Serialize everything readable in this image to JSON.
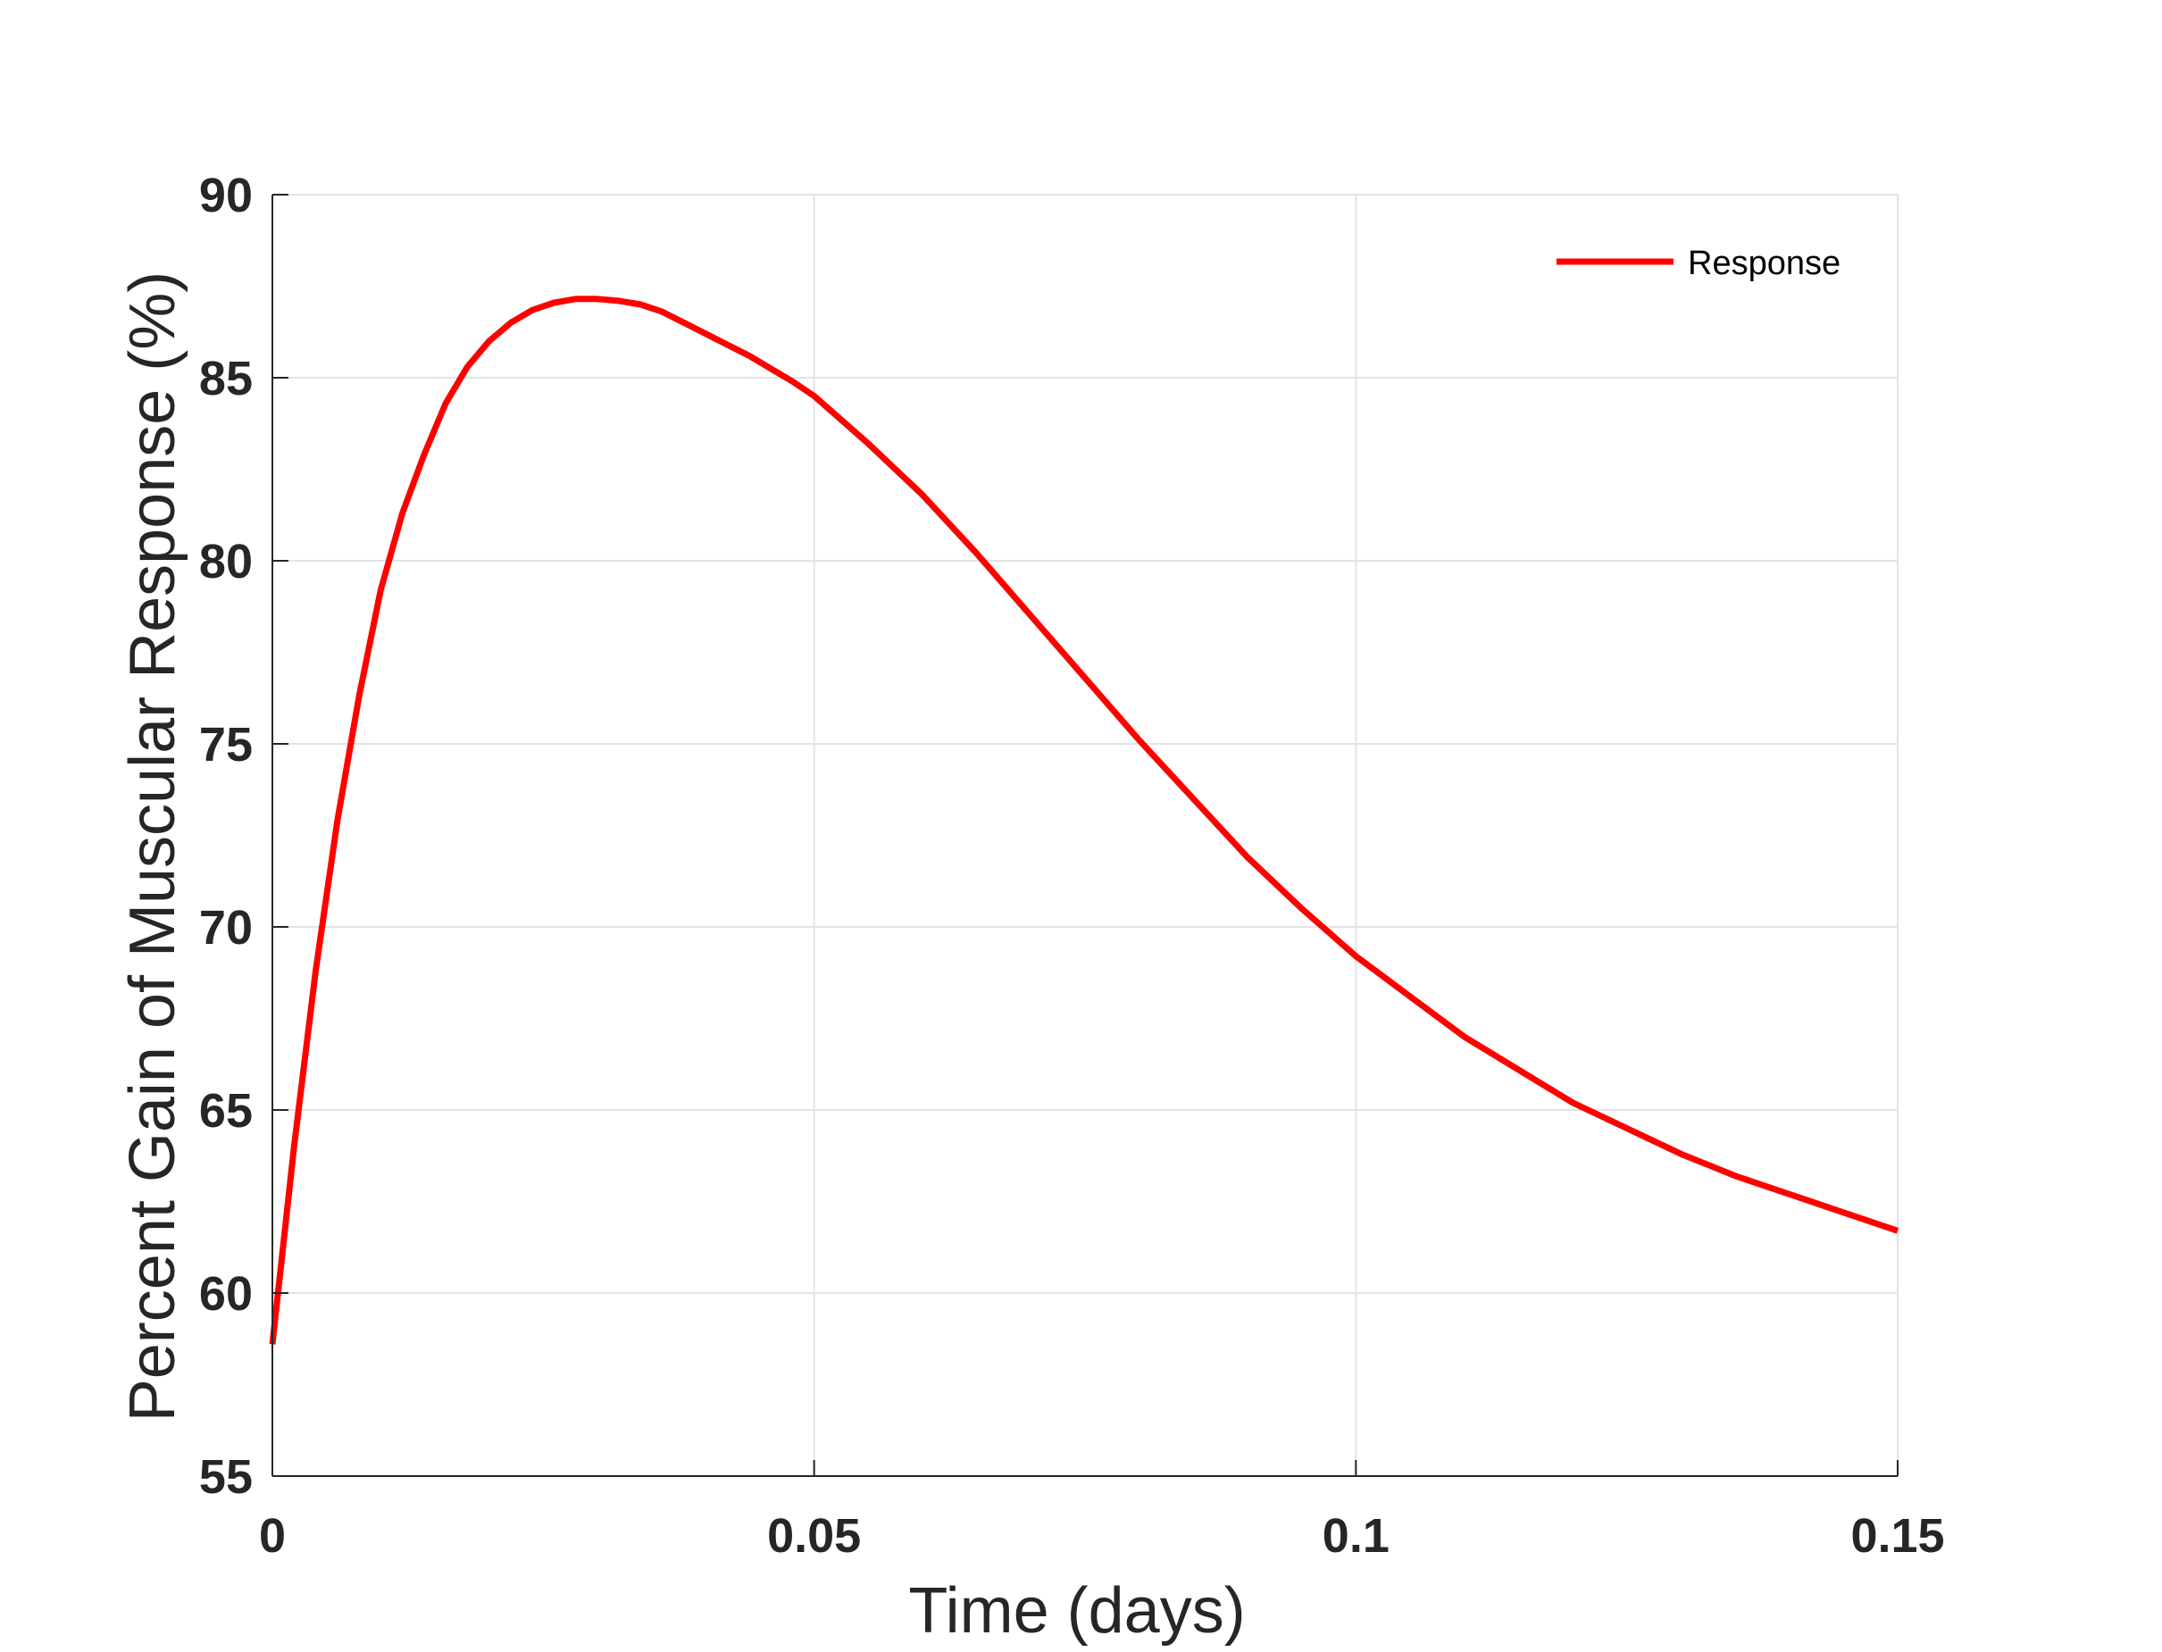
{
  "chart_data": {
    "type": "line",
    "title": "",
    "xlabel": "Time (days)",
    "ylabel": "Percent Gain of Muscular Response (%)",
    "xlim": [
      0,
      0.15
    ],
    "ylim": [
      55,
      90
    ],
    "xticks": [
      0,
      0.05,
      0.1,
      0.15
    ],
    "xtick_labels": [
      "0",
      "0.05",
      "0.1",
      "0.15"
    ],
    "yticks": [
      55,
      60,
      65,
      70,
      75,
      80,
      85,
      90
    ],
    "ytick_labels": [
      "55",
      "60",
      "65",
      "70",
      "75",
      "80",
      "85",
      "90"
    ],
    "grid": true,
    "legend_position": "top-right",
    "series": [
      {
        "name": "Response",
        "color": "#ff0000",
        "x": [
          0,
          0.002,
          0.004,
          0.006,
          0.008,
          0.01,
          0.012,
          0.014,
          0.016,
          0.018,
          0.02,
          0.022,
          0.024,
          0.026,
          0.028,
          0.03,
          0.032,
          0.034,
          0.036,
          0.038,
          0.04,
          0.042,
          0.044,
          0.046,
          0.048,
          0.05,
          0.055,
          0.06,
          0.065,
          0.07,
          0.075,
          0.08,
          0.085,
          0.09,
          0.095,
          0.1,
          0.105,
          0.11,
          0.115,
          0.12,
          0.125,
          0.13,
          0.135,
          0.14,
          0.145,
          0.15
        ],
        "y": [
          58.6,
          64.0,
          68.8,
          72.9,
          76.3,
          79.2,
          81.3,
          82.9,
          84.3,
          85.3,
          86.0,
          86.5,
          86.85,
          87.05,
          87.15,
          87.15,
          87.1,
          87.0,
          86.8,
          86.5,
          86.2,
          85.9,
          85.6,
          85.25,
          84.9,
          84.5,
          83.2,
          81.8,
          80.2,
          78.5,
          76.8,
          75.1,
          73.5,
          71.9,
          70.5,
          69.2,
          68.1,
          67.0,
          66.1,
          65.2,
          64.5,
          63.8,
          63.2,
          62.7,
          62.2,
          61.7
        ]
      }
    ]
  },
  "legend": {
    "label": "Response"
  }
}
